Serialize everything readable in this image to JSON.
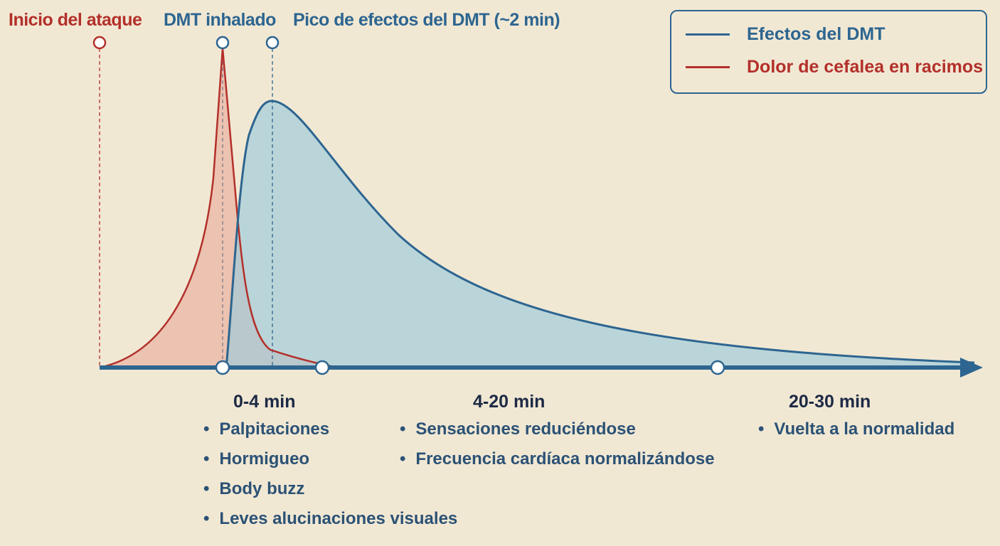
{
  "markers": {
    "attack_start": "Inicio del ataque",
    "dmt_inhaled": "DMT inhalado",
    "dmt_peak": "Pico de efectos del DMT (~2 min)"
  },
  "legend": {
    "items": [
      {
        "label": "Efectos del DMT",
        "color": "#2d6590"
      },
      {
        "label": "Dolor de cefalea en racimos",
        "color": "#b3302a"
      }
    ]
  },
  "phases": [
    {
      "title": "0-4 min",
      "items": [
        "Palpitaciones",
        "Hormigueo",
        "Body buzz",
        "Leves alucinaciones visuales"
      ]
    },
    {
      "title": "4-20 min",
      "items": [
        "Sensaciones reduciéndose",
        "Frecuencia cardíaca normalizándose"
      ]
    },
    {
      "title": "20-30 min",
      "items": [
        "Vuelta a la normalidad"
      ]
    }
  ],
  "colors": {
    "background": "#f1e8d4",
    "pain": "#b3302a",
    "dmt": "#2d6590",
    "heading": "#1d2a45"
  }
}
